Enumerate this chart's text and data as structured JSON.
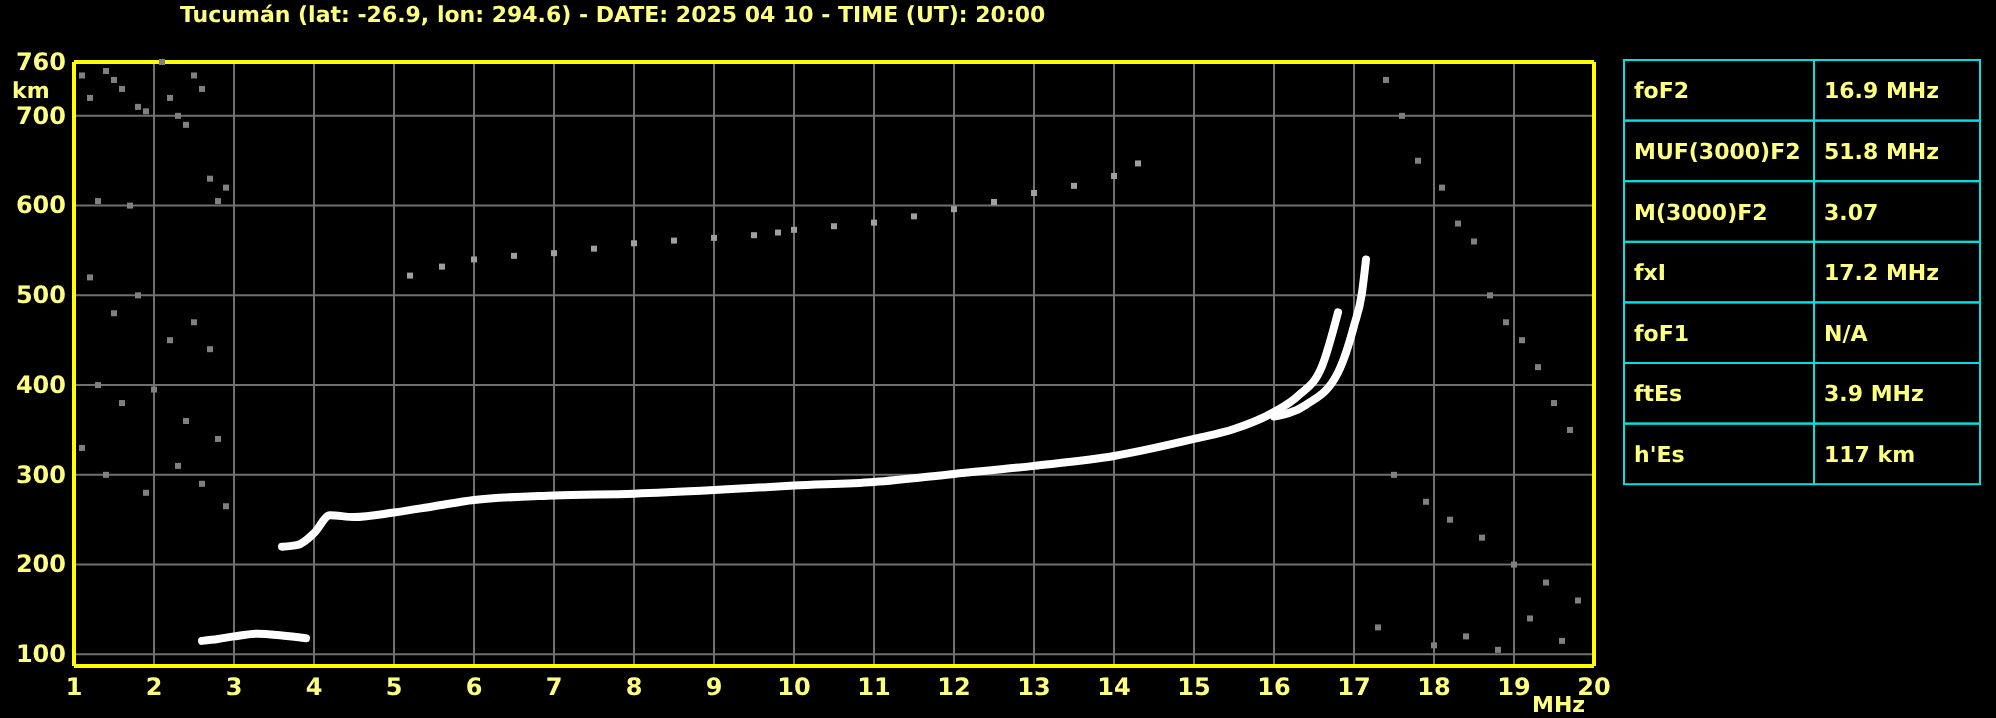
{
  "chart_data": [
    {
      "type": "line",
      "title": "Tucumán (lat: -26.9, lon: 294.6) - DATE: 2025 04 10 - TIME (UT): 20:00",
      "xlabel": "MHz",
      "ylabel": "km",
      "xlim": [
        1,
        20
      ],
      "ylim": [
        87,
        760
      ],
      "xticks": [
        1,
        2,
        3,
        4,
        5,
        6,
        7,
        8,
        9,
        10,
        11,
        12,
        13,
        14,
        15,
        16,
        17,
        18,
        19,
        20
      ],
      "yticks": [
        100,
        200,
        300,
        400,
        500,
        600,
        700,
        760
      ],
      "grid": true,
      "series": [
        {
          "type": "scatter",
          "marker": "square",
          "color": "#808080",
          "x": [
            1.1,
            1.2,
            1.3,
            1.4,
            1.5,
            1.6,
            1.7,
            1.8,
            1.9,
            2.1,
            2.2,
            2.3,
            2.4,
            2.5,
            2.6,
            2.7,
            2.8,
            2.9,
            1.2,
            1.5,
            1.8,
            2.2,
            2.5,
            2.7,
            1.3,
            1.6,
            2.0,
            2.4,
            2.8,
            1.1,
            1.4,
            1.9,
            2.3,
            2.6,
            2.9,
            17.4,
            17.6,
            17.8,
            18.1,
            18.3,
            18.5,
            18.7,
            18.9,
            19.1,
            19.3,
            19.5,
            19.7,
            17.5,
            17.9,
            18.2,
            18.6,
            19.0,
            19.4,
            19.8,
            17.3,
            18.0,
            18.4,
            18.8,
            19.2,
            19.6
          ],
          "values": [
            745,
            720,
            605,
            750,
            740,
            730,
            600,
            710,
            705,
            760,
            720,
            700,
            690,
            745,
            730,
            630,
            605,
            620,
            520,
            480,
            500,
            450,
            470,
            440,
            400,
            380,
            395,
            360,
            340,
            330,
            300,
            280,
            310,
            290,
            265,
            740,
            700,
            650,
            620,
            580,
            560,
            500,
            470,
            450,
            420,
            380,
            350,
            300,
            270,
            250,
            230,
            200,
            180,
            160,
            130,
            110,
            120,
            105,
            140,
            115
          ]
        },
        {
          "type": "line",
          "marker": "none",
          "color": "#ffffff",
          "x": [
            2.6,
            2.8,
            3.0,
            3.3,
            3.6,
            3.9
          ],
          "values": [
            115,
            117,
            120,
            123,
            121,
            118
          ]
        },
        {
          "type": "line",
          "marker": "none",
          "color": "#ffffff",
          "x": [
            3.6,
            3.8,
            4.0,
            4.2,
            4.5,
            5,
            5.5,
            6,
            7,
            8,
            9,
            10,
            11,
            12,
            13,
            14,
            15,
            15.5,
            16,
            16.3,
            16.6,
            16.8
          ],
          "values": [
            220,
            222,
            235,
            255,
            253,
            258,
            265,
            272,
            277,
            279,
            283,
            288,
            292,
            301,
            310,
            321,
            340,
            351,
            370,
            388,
            421,
            481
          ]
        },
        {
          "type": "line",
          "marker": "none",
          "color": "#ffffff",
          "x": [
            16,
            16.4,
            16.8,
            17.0,
            17.1,
            17.15
          ],
          "values": [
            365,
            378,
            414,
            466,
            503,
            540
          ]
        },
        {
          "type": "scatter",
          "marker": "square",
          "color": "#a0a0a0",
          "x": [
            5.2,
            5.6,
            6.0,
            6.5,
            7.0,
            7.5,
            8.0,
            8.5,
            9.0,
            9.5,
            9.8,
            10.0,
            10.5,
            11.0,
            11.5,
            12.0,
            12.5,
            13.0,
            13.5,
            14.0,
            14.3
          ],
          "values": [
            522,
            532,
            540,
            544,
            547,
            552,
            558,
            561,
            564,
            567,
            570,
            573,
            577,
            581,
            588,
            596,
            604,
            614,
            622,
            633,
            647
          ]
        }
      ]
    },
    {
      "type": "other",
      "annotations": [
        "foF2",
        "16.9 MHz",
        "MUF(3000)F2",
        "51.8 MHz",
        "M(3000)F2",
        "3.07",
        "fxI",
        "17.2 MHz",
        "foF1",
        "N/A",
        "ftEs",
        "3.9 MHz",
        "h'Es",
        "117 km"
      ]
    }
  ]
}
